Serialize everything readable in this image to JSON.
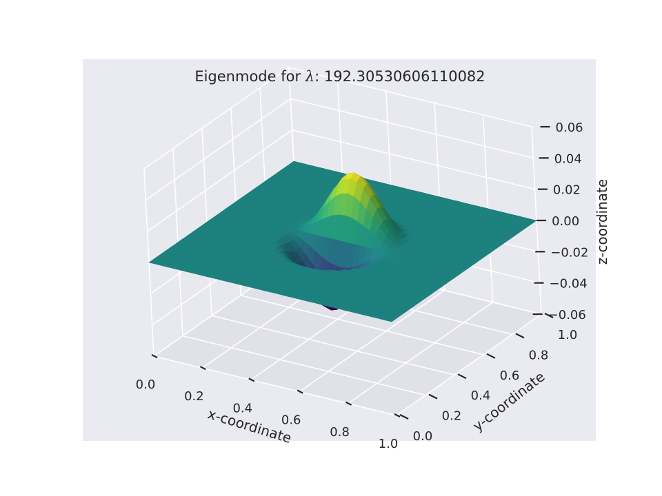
{
  "chart_data": {
    "type": "surface3d",
    "title_prefix": "Eigenmode for ",
    "title_symbol": "λ",
    "title_suffix": ": 192.30530606110082",
    "xlabel": "x-coordinate",
    "ylabel": "y-coordinate",
    "zlabel": "z-coordinate",
    "xlim": [
      0,
      1
    ],
    "ylim": [
      0,
      1
    ],
    "zlim": [
      -0.06,
      0.06
    ],
    "x_ticks": [
      "0.0",
      "0.2",
      "0.4",
      "0.6",
      "0.8",
      "1.0"
    ],
    "y_ticks": [
      "0.0",
      "0.2",
      "0.4",
      "0.6",
      "0.8",
      "1.0"
    ],
    "z_ticks": [
      "−0.06",
      "−0.04",
      "−0.02",
      "0.00",
      "0.02",
      "0.04",
      "0.06"
    ],
    "z_tick_values": [
      -0.06,
      -0.04,
      -0.02,
      0.0,
      0.02,
      0.04,
      0.06
    ],
    "colormap": "viridis",
    "grid": true,
    "style": "seaborn-darkgrid",
    "surface": {
      "description_of_shape": "antisymmetric dipole mode",
      "peak": {
        "x": 0.5,
        "y": 0.7,
        "z": 0.058
      },
      "trough": {
        "x": 0.5,
        "y": 0.3,
        "z": -0.058
      },
      "domain": "unit square, zero outside a central region",
      "grid_resolution": 40
    },
    "colors": {
      "pane_back": "#e8e8ef",
      "pane_floor": "#e1e1e9",
      "figure_bg": "#eaeaf2",
      "grid": "#ffffff"
    }
  }
}
